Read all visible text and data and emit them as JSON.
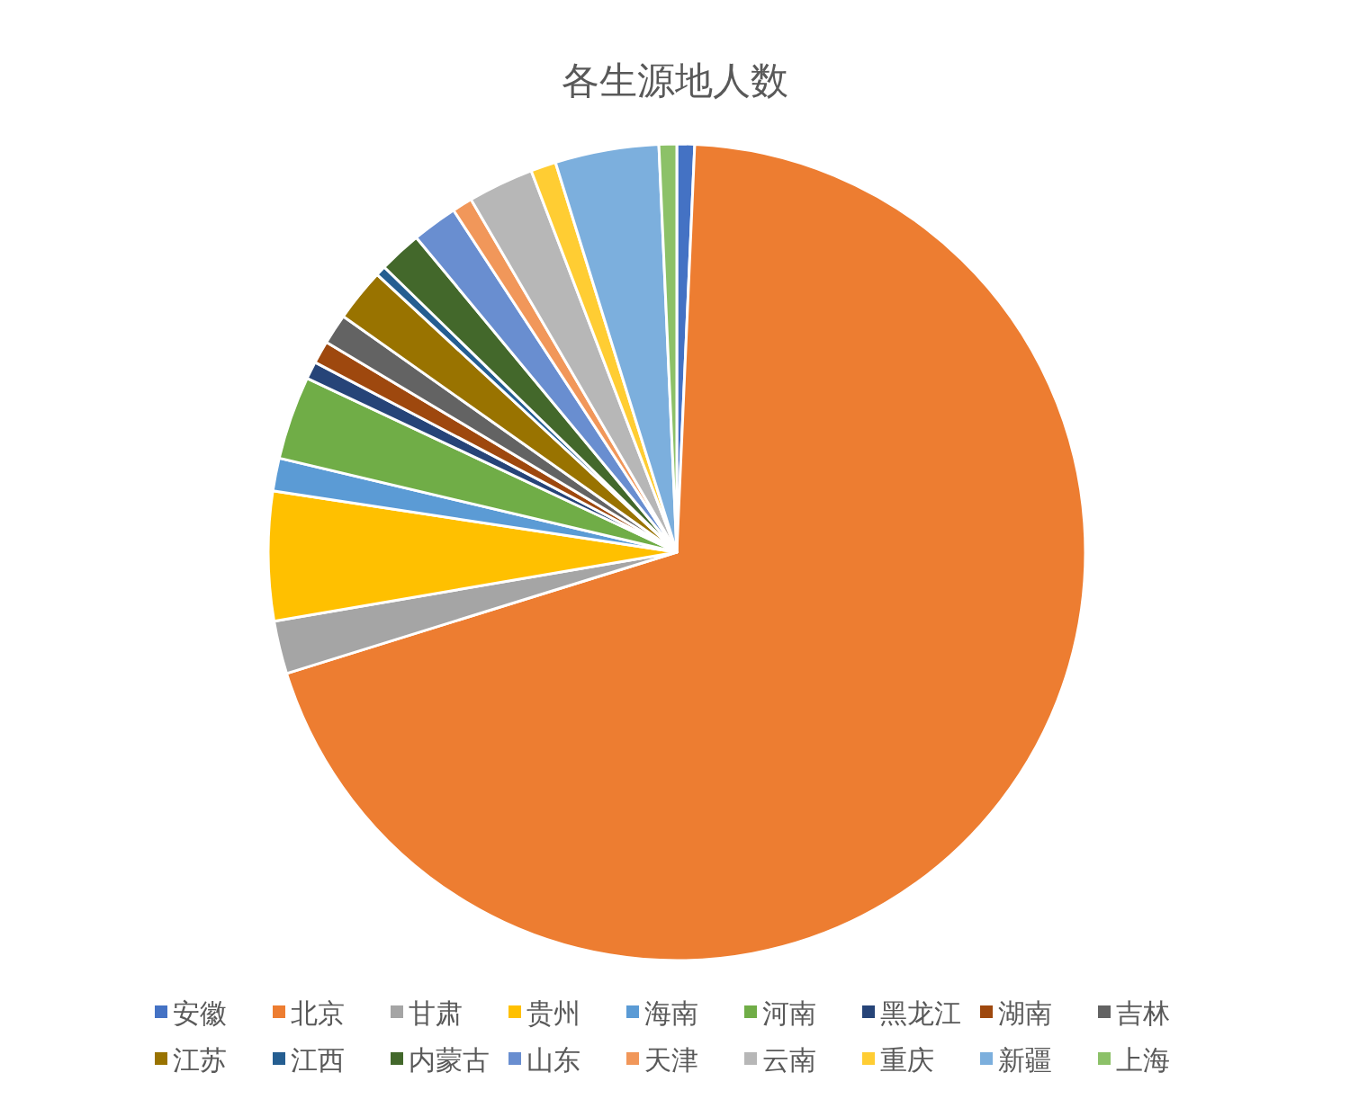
{
  "chart_data": {
    "type": "pie",
    "title": "各生源地人数",
    "categories": [
      "安徽",
      "北京",
      "甘肃",
      "贵州",
      "海南",
      "河南",
      "黑龙江",
      "湖南",
      "吉林",
      "江苏",
      "江西",
      "内蒙古",
      "山东",
      "天津",
      "云南",
      "重庆",
      "新疆",
      "上海"
    ],
    "values": [
      0.7,
      69.5,
      2.1,
      5.1,
      1.3,
      3.3,
      0.7,
      0.9,
      1.2,
      2.1,
      0.4,
      1.7,
      1.8,
      0.8,
      2.6,
      1.0,
      4.1,
      0.7
    ],
    "colors": [
      "#4472c4",
      "#ed7d31",
      "#a5a5a5",
      "#ffc000",
      "#5b9bd5",
      "#70ad47",
      "#264478",
      "#9e480e",
      "#636363",
      "#997300",
      "#255e91",
      "#43682b",
      "#698ed0",
      "#f1975a",
      "#b7b7b7",
      "#ffcd33",
      "#7cafdd",
      "#8cc168"
    ],
    "legend": "bottom"
  }
}
